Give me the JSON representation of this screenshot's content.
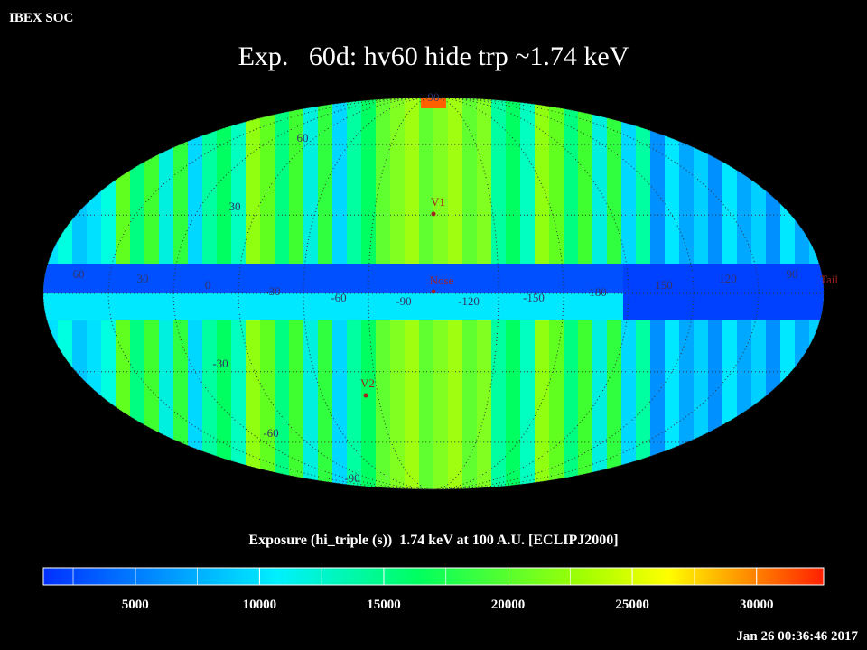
{
  "header": {
    "source": "IBEX SOC",
    "title": "Exp.   60d: hv60 hide trp ~1.74 keV",
    "timestamp": "Jan 26 00:36:46 2017"
  },
  "map": {
    "latitude_labels": [
      "90",
      "60",
      "30",
      "-30",
      "-60",
      "-90"
    ],
    "longitude_labels": [
      "60",
      "30",
      "0",
      "-30",
      "-60",
      "-90",
      "-120",
      "-150",
      "180",
      "150",
      "120",
      "90"
    ],
    "markers": [
      "V1",
      "Nose",
      "V2",
      "Tail"
    ]
  },
  "colorbar": {
    "label": "Exposure (hi_triple (s))  1.74 keV at 100 A.U. [ECLIPJ2000]",
    "range": [
      1300,
      32700
    ],
    "ticks": [
      5000,
      10000,
      15000,
      20000,
      25000,
      30000
    ]
  }
}
